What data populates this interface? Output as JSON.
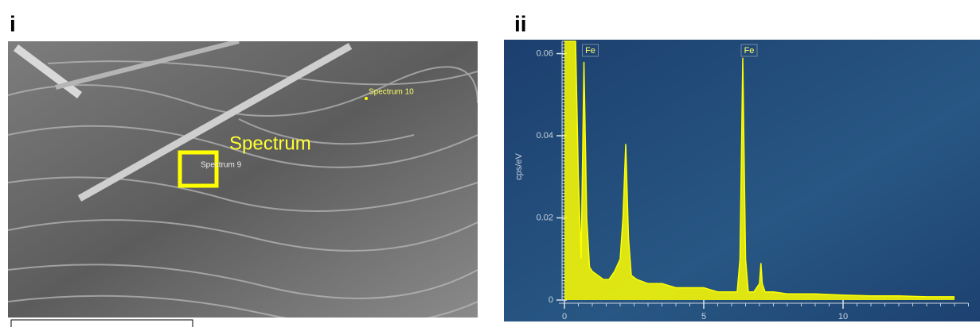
{
  "panel_labels": [
    "i",
    "ii"
  ],
  "image_annotations": {
    "region_label": "Spectrum",
    "spectra": [
      "Spectrum 9",
      "Spectrum 10"
    ]
  },
  "chart_data": {
    "type": "line",
    "y_label": "cps/eV",
    "x": [
      0,
      0.1,
      0.2,
      0.3,
      0.4,
      0.5,
      0.6,
      0.7,
      0.8,
      0.9,
      1.0,
      1.2,
      1.4,
      1.6,
      1.8,
      2.0,
      2.1,
      2.2,
      2.3,
      2.4,
      2.6,
      3.0,
      3.5,
      4.0,
      4.5,
      5.0,
      5.5,
      6.0,
      6.2,
      6.3,
      6.4,
      6.5,
      6.6,
      6.8,
      7.0,
      7.05,
      7.1,
      7.2,
      7.5,
      8,
      9,
      10,
      11,
      12,
      13,
      14
    ],
    "series": [
      {
        "color": "#ffff00",
        "values": [
          0.063,
          0.063,
          0.063,
          0.063,
          0.063,
          0.03,
          0.01,
          0.058,
          0.02,
          0.008,
          0.007,
          0.006,
          0.005,
          0.005,
          0.007,
          0.01,
          0.02,
          0.038,
          0.015,
          0.006,
          0.005,
          0.004,
          0.004,
          0.003,
          0.003,
          0.003,
          0.002,
          0.002,
          0.002,
          0.01,
          0.059,
          0.01,
          0.002,
          0.002,
          0.004,
          0.009,
          0.004,
          0.002,
          0.002,
          0.0015,
          0.0015,
          0.0012,
          0.001,
          0.001,
          0.0008,
          0.0008
        ]
      }
    ],
    "annotations": [
      {
        "text": "Fe",
        "x": 0.7
      },
      {
        "text": "Fe",
        "x": 6.4
      }
    ],
    "xlim": [
      -0.2,
      14.5
    ],
    "ylim": [
      0,
      0.063
    ],
    "xticks": [
      0,
      5,
      10
    ],
    "yticks": [
      0,
      0.02,
      0.04,
      0.06
    ]
  }
}
